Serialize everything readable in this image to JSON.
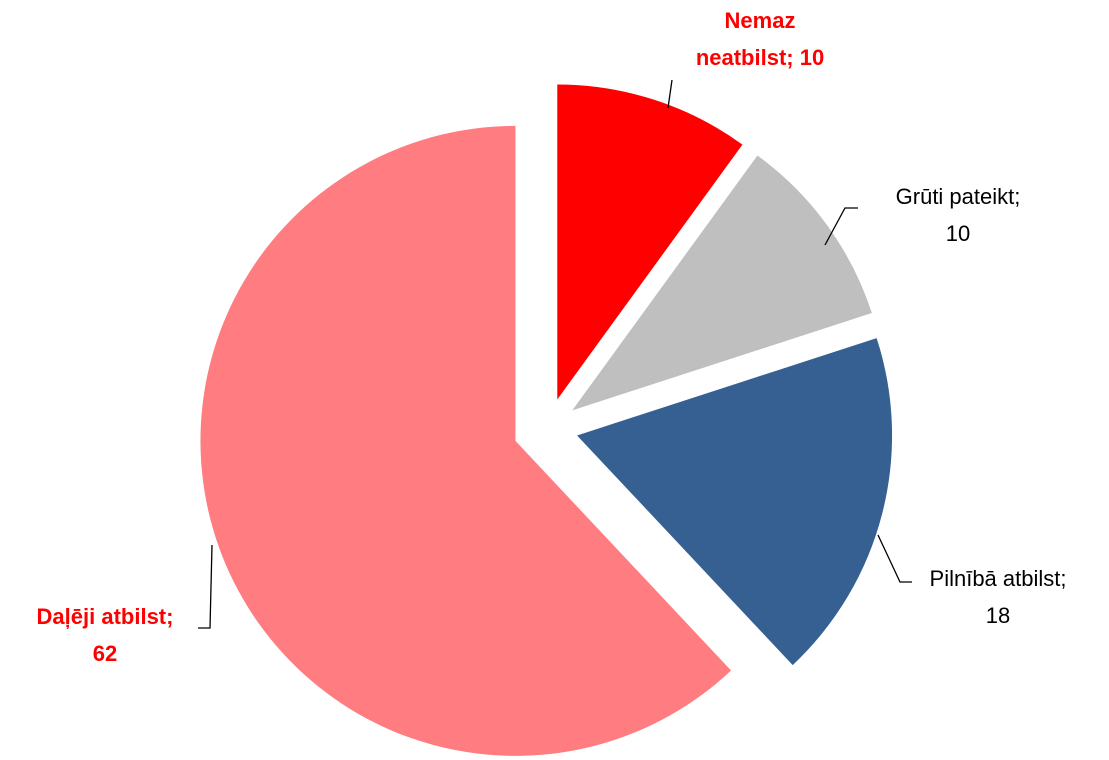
{
  "chart_data": {
    "type": "pie",
    "categories": [
      "Nemaz neatbilst",
      "Grūti pateikt",
      "Pilnībā atbilst",
      "Daļēji atbilst"
    ],
    "values": [
      10,
      10,
      18,
      62
    ],
    "value_labels": [
      "Nemaz neatbilst; 10",
      "Grūti pateikt; 10",
      "Pilnībā atbilst; 18",
      "Daļēji atbilst; 62"
    ],
    "colors": [
      "#ff0000",
      "#bfbfbf",
      "#376092",
      "#ff7c80"
    ],
    "label_colors": [
      "#ff0000",
      "#000000",
      "#000000",
      "#ff0000"
    ]
  }
}
